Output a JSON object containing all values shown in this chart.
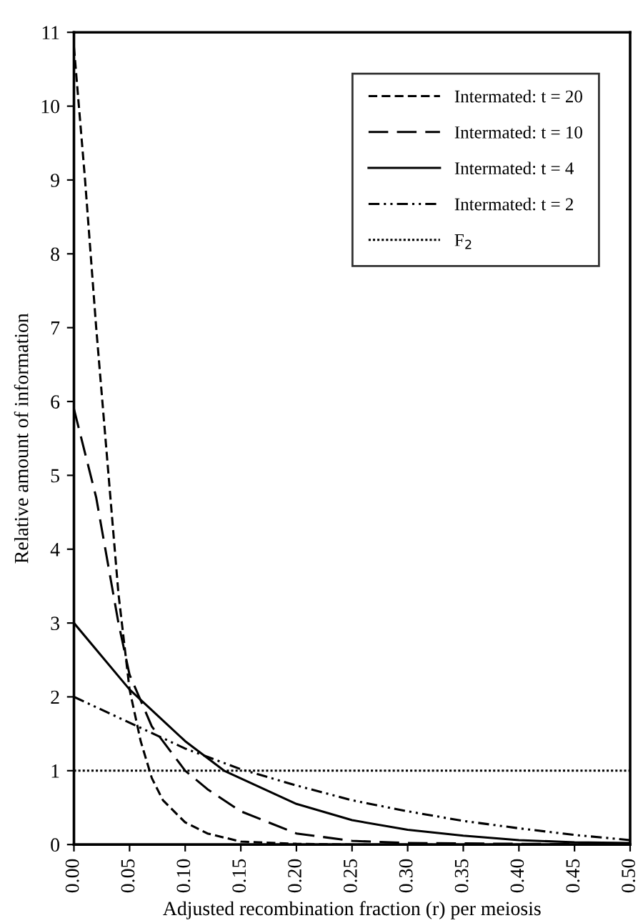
{
  "chart_data": {
    "type": "line",
    "xlabel": "Adjusted recombination fraction (r) per meiosis",
    "ylabel": "Relative amount of information",
    "xlim": [
      0,
      0.5
    ],
    "ylim": [
      0,
      11
    ],
    "xticks": [
      {
        "value": 0,
        "label": "0.00"
      },
      {
        "value": 0.05,
        "label": "0.05"
      },
      {
        "value": 0.1,
        "label": "0.10"
      },
      {
        "value": 0.15,
        "label": "0.15"
      },
      {
        "value": 0.2,
        "label": "0.20"
      },
      {
        "value": 0.25,
        "label": "0.25"
      },
      {
        "value": 0.3,
        "label": "0.30"
      },
      {
        "value": 0.35,
        "label": "0.35"
      },
      {
        "value": 0.4,
        "label": "0.40"
      },
      {
        "value": 0.45,
        "label": "0.45"
      },
      {
        "value": 0.5,
        "label": "0.50"
      }
    ],
    "yticks": [
      0,
      1,
      2,
      3,
      4,
      5,
      6,
      7,
      8,
      9,
      10,
      11
    ],
    "grid": false,
    "legend": "top right",
    "marker": "none",
    "series": [
      {
        "name": "Intermated: t = 20",
        "color": "#000000",
        "line_style": "dashed",
        "x": [
          0,
          0.01,
          0.02,
          0.03,
          0.04,
          0.05,
          0.06,
          0.07,
          0.08,
          0.1,
          0.12,
          0.15,
          0.2,
          0.25,
          0.5
        ],
        "values": [
          10.8,
          9,
          7,
          5.2,
          3.4,
          2.1,
          1.4,
          0.9,
          0.6,
          0.3,
          0.15,
          0.04,
          0.01,
          0,
          0
        ]
      },
      {
        "name": "Intermated: t = 10",
        "color": "#000000",
        "line_style": "longdashed",
        "x": [
          0,
          0.02,
          0.04,
          0.05,
          0.07,
          0.1,
          0.12,
          0.15,
          0.2,
          0.25,
          0.3,
          0.5
        ],
        "values": [
          5.9,
          4.7,
          3.0,
          2.3,
          1.6,
          1.0,
          0.75,
          0.45,
          0.15,
          0.05,
          0.02,
          0
        ]
      },
      {
        "name": "Intermated: t = 4",
        "color": "#000000",
        "line_style": "solid",
        "x": [
          0,
          0.05,
          0.1,
          0.135,
          0.2,
          0.25,
          0.3,
          0.35,
          0.4,
          0.45,
          0.5
        ],
        "values": [
          3,
          2.1,
          1.4,
          1.0,
          0.55,
          0.33,
          0.2,
          0.12,
          0.06,
          0.03,
          0.02
        ]
      },
      {
        "name": "Intermated: t = 2",
        "color": "#000000",
        "line_style": "dashdotdot",
        "x": [
          0,
          0.05,
          0.1,
          0.15,
          0.2,
          0.25,
          0.3,
          0.35,
          0.4,
          0.45,
          0.5
        ],
        "values": [
          2,
          1.65,
          1.3,
          1.02,
          0.8,
          0.6,
          0.45,
          0.32,
          0.22,
          0.13,
          0.06
        ]
      },
      {
        "name": "F$_{2}$",
        "color": "#000000",
        "line_style": "dotted",
        "x": [
          0,
          0.5
        ],
        "values": [
          1,
          1
        ]
      }
    ]
  }
}
